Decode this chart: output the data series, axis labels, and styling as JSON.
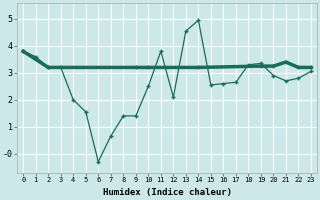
{
  "xlabel": "Humidex (Indice chaleur)",
  "bg_color": "#cce8e8",
  "grid_color": "#ffffff",
  "line_color": "#1a6b5a",
  "x_ticks": [
    0,
    1,
    2,
    3,
    4,
    5,
    6,
    7,
    8,
    9,
    10,
    11,
    12,
    13,
    14,
    15,
    16,
    17,
    18,
    19,
    20,
    21,
    22,
    23
  ],
  "y_ticks": [
    0,
    1,
    2,
    3,
    4,
    5
  ],
  "y_tick_labels": [
    "-0",
    "1",
    "2",
    "3",
    "4",
    "5"
  ],
  "ylim": [
    -0.7,
    5.6
  ],
  "xlim": [
    -0.5,
    23.5
  ],
  "line1_x": [
    0,
    1,
    2,
    3,
    4,
    5,
    6,
    7,
    8,
    9,
    10,
    11,
    12,
    13,
    14,
    15,
    16,
    17,
    18,
    19,
    20,
    21,
    22,
    23
  ],
  "line1_y": [
    3.8,
    3.6,
    3.2,
    3.2,
    2.0,
    1.55,
    -0.3,
    0.65,
    1.4,
    1.4,
    2.5,
    3.8,
    2.1,
    4.55,
    4.95,
    2.55,
    2.6,
    2.65,
    3.3,
    3.35,
    2.9,
    2.7,
    2.8,
    3.05
  ],
  "line2_x": [
    0,
    2,
    9,
    10,
    14,
    19,
    20,
    21,
    22,
    23
  ],
  "line2_y": [
    3.8,
    3.2,
    3.2,
    3.2,
    3.2,
    3.25,
    3.25,
    3.4,
    3.2,
    3.2
  ]
}
